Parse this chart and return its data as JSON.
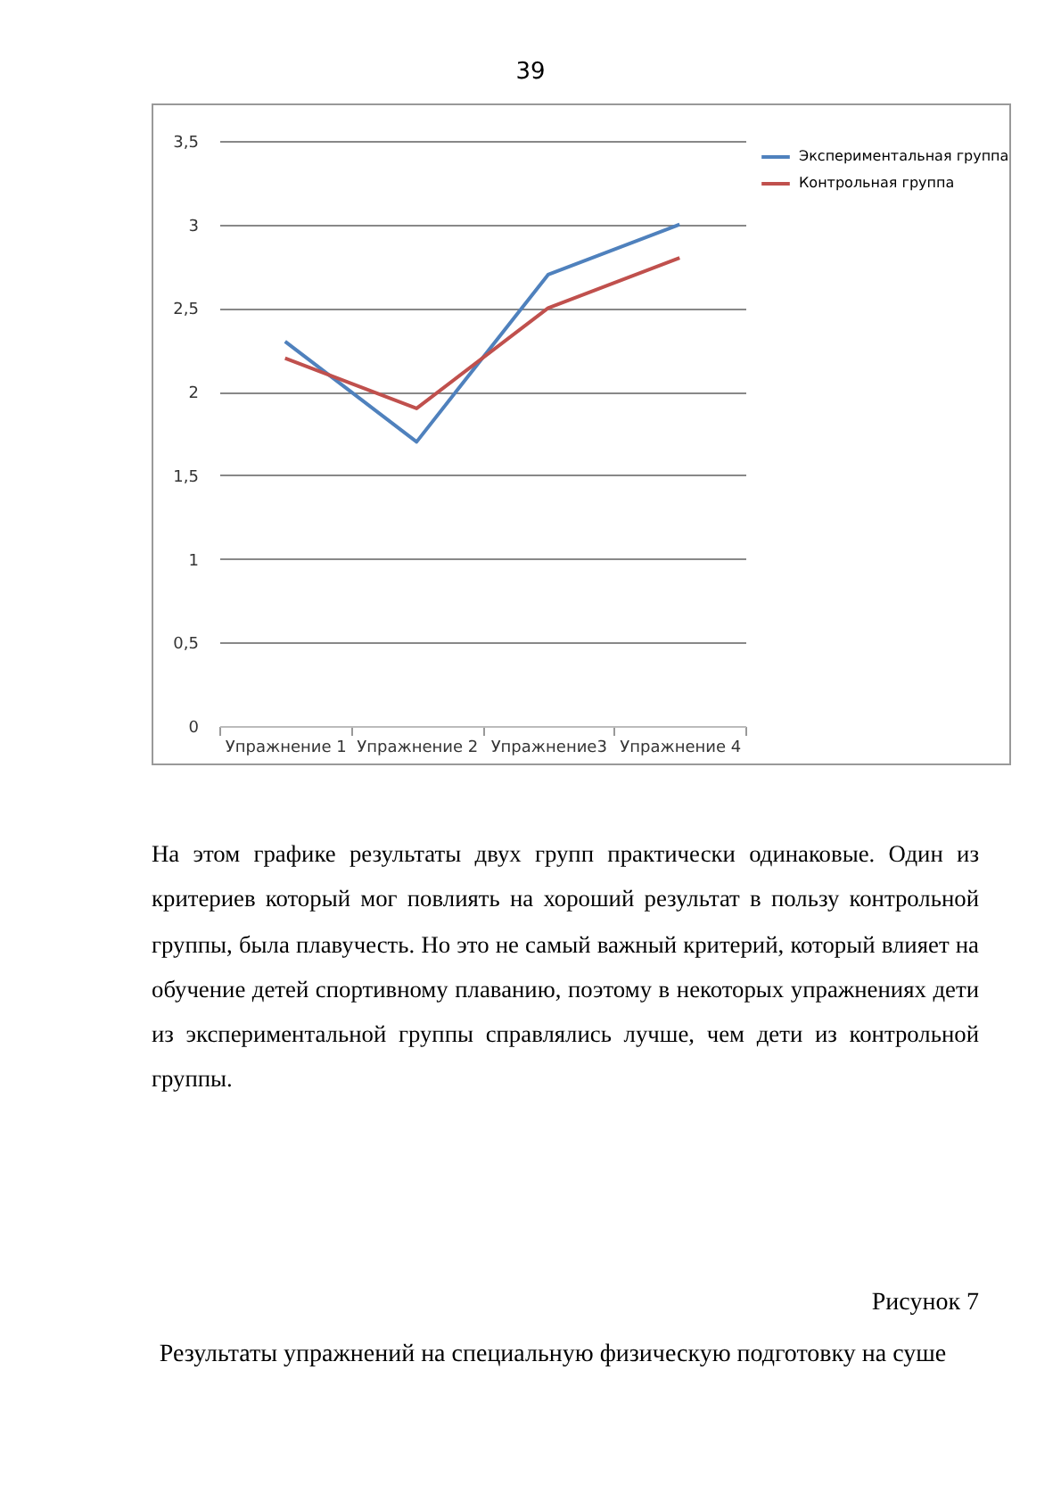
{
  "chart_data": {
    "type": "line",
    "categories": [
      "Упражнение 1",
      "Упражнение 2",
      "Упражнение3",
      "Упражнение 4"
    ],
    "series": [
      {
        "name": "Экспериментальная группа",
        "color": "#4f81bd",
        "values": [
          2.3,
          1.7,
          2.7,
          3.0
        ]
      },
      {
        "name": "Контрольная группа",
        "color": "#c0504d",
        "values": [
          2.2,
          1.9,
          2.5,
          2.8
        ]
      }
    ],
    "ylim": [
      0,
      3.5
    ],
    "yticks": [
      0,
      {
        "value": 0.5,
        "label": "0,5"
      },
      1,
      {
        "value": 1.5,
        "label": "1,5"
      },
      2,
      {
        "value": 2.5,
        "label": "2,5"
      },
      3,
      {
        "value": 3.5,
        "label": "3,5"
      }
    ],
    "grid": "y",
    "legend": "right",
    "annotations": [
      "39",
      "На этом графике результаты двух групп практически одинаковые. Один из критериев который мог повлиять на хороший результат в пользу контрольной группы, была плавучесть. Но это не самый важный критерий, который влияет на обучение детей спортивному плаванию, поэтому в некоторых упражнениях дети из экспериментальной группы справлялись лучше, чем дети из контрольной группы.",
      "Рисунок 7",
      "Результаты упражнений на специальную физическую подготовку на суше"
    ]
  }
}
